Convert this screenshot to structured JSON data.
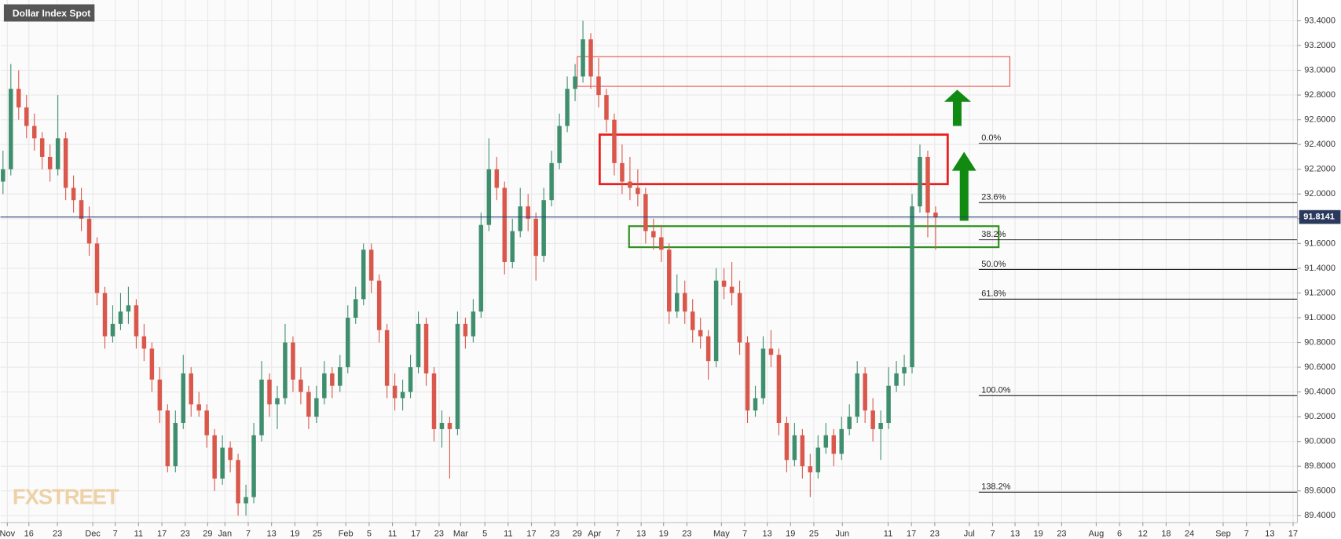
{
  "chart_data": {
    "type": "candlestick",
    "title": "Dollar Index Spot",
    "watermark": "FXSTREET",
    "up_color": "#3f8f6f",
    "down_color": "#d9584b",
    "grid": true,
    "ylim": [
      89.344,
      93.568
    ],
    "yticks": [
      {
        "value": 89.4,
        "label": "89.4000"
      },
      {
        "value": 89.6,
        "label": "89.6000"
      },
      {
        "value": 89.8,
        "label": "89.8000"
      },
      {
        "value": 90.0,
        "label": "90.0000"
      },
      {
        "value": 90.2,
        "label": "90.2000"
      },
      {
        "value": 90.4,
        "label": "90.4000"
      },
      {
        "value": 90.6,
        "label": "90.6000"
      },
      {
        "value": 90.8,
        "label": "90.8000"
      },
      {
        "value": 91.0,
        "label": "91.0000"
      },
      {
        "value": 91.2,
        "label": "91.2000"
      },
      {
        "value": 91.4,
        "label": "91.4000"
      },
      {
        "value": 91.6,
        "label": "91.6000"
      },
      {
        "value": 91.8,
        "label": "91.8000"
      },
      {
        "value": 92.0,
        "label": "92.0000"
      },
      {
        "value": 92.2,
        "label": "92.2000"
      },
      {
        "value": 92.4,
        "label": "92.4000"
      },
      {
        "value": 92.6,
        "label": "92.6000"
      },
      {
        "value": 92.8,
        "label": "92.8000"
      },
      {
        "value": 93.0,
        "label": "93.0000"
      },
      {
        "value": 93.2,
        "label": "93.2000"
      },
      {
        "value": 93.4,
        "label": "93.4000"
      }
    ],
    "xtick_labels": [
      "Nov",
      "16",
      "23",
      "Dec",
      "7",
      "11",
      "17",
      "23",
      "29",
      "Jan",
      "7",
      "13",
      "19",
      "25",
      "Feb",
      "5",
      "11",
      "17",
      "23",
      "Mar",
      "5",
      "11",
      "17",
      "23",
      "29",
      "Apr",
      "7",
      "13",
      "19",
      "23",
      "May",
      "7",
      "13",
      "19",
      "25",
      "Jun",
      "11",
      "17",
      "23",
      "Jul",
      "7",
      "13",
      "19",
      "23",
      "Aug",
      "6",
      "12",
      "18",
      "24",
      "Sep",
      "7",
      "13",
      "17"
    ],
    "last": 91.8141,
    "fib_levels": [
      {
        "label": "0.0%",
        "value": 92.41
      },
      {
        "label": "23.6%",
        "value": 91.93
      },
      {
        "label": "38.2%",
        "value": 91.63
      },
      {
        "label": "50.0%",
        "value": 91.39
      },
      {
        "label": "61.8%",
        "value": 91.15
      },
      {
        "label": "100.0%",
        "value": 90.37
      },
      {
        "label": "138.2%",
        "value": 89.59
      }
    ],
    "zones": [
      {
        "range": [
          92.87,
          93.11
        ],
        "color": "#e8504a"
      },
      {
        "range": [
          92.08,
          92.48
        ],
        "color": "#ee1c1c"
      },
      {
        "range": [
          91.57,
          91.74
        ],
        "color": "#2f8f1f"
      }
    ],
    "ohlc": [
      [
        92.1,
        92.35,
        92.0,
        92.2
      ],
      [
        92.2,
        93.05,
        92.15,
        92.85
      ],
      [
        92.85,
        93.0,
        92.6,
        92.7
      ],
      [
        92.7,
        92.8,
        92.45,
        92.55
      ],
      [
        92.55,
        92.65,
        92.35,
        92.45
      ],
      [
        92.45,
        92.5,
        92.2,
        92.3
      ],
      [
        92.3,
        92.4,
        92.1,
        92.2
      ],
      [
        92.2,
        92.8,
        92.15,
        92.45
      ],
      [
        92.45,
        92.5,
        91.95,
        92.05
      ],
      [
        92.05,
        92.15,
        91.85,
        91.95
      ],
      [
        91.95,
        92.05,
        91.7,
        91.8
      ],
      [
        91.8,
        91.9,
        91.5,
        91.6
      ],
      [
        91.6,
        91.65,
        91.1,
        91.2
      ],
      [
        91.2,
        91.25,
        90.75,
        90.85
      ],
      [
        90.85,
        91.1,
        90.8,
        90.95
      ],
      [
        90.95,
        91.2,
        90.9,
        91.05
      ],
      [
        91.05,
        91.25,
        90.95,
        91.1
      ],
      [
        91.1,
        91.15,
        90.75,
        90.85
      ],
      [
        90.85,
        90.95,
        90.65,
        90.75
      ],
      [
        90.75,
        90.8,
        90.4,
        90.5
      ],
      [
        90.5,
        90.6,
        90.15,
        90.25
      ],
      [
        90.25,
        90.3,
        89.75,
        89.8
      ],
      [
        89.8,
        90.25,
        89.75,
        90.15
      ],
      [
        90.15,
        90.7,
        90.1,
        90.55
      ],
      [
        90.55,
        90.6,
        90.2,
        90.3
      ],
      [
        90.3,
        90.4,
        90.2,
        90.25
      ],
      [
        90.25,
        90.3,
        89.95,
        90.05
      ],
      [
        90.05,
        90.1,
        89.6,
        89.7
      ],
      [
        89.7,
        90.05,
        89.65,
        89.95
      ],
      [
        89.95,
        90.0,
        89.75,
        89.85
      ],
      [
        89.85,
        89.9,
        89.4,
        89.5
      ],
      [
        89.5,
        89.65,
        89.4,
        89.55
      ],
      [
        89.55,
        90.15,
        89.5,
        90.05
      ],
      [
        90.05,
        90.65,
        90.0,
        90.5
      ],
      [
        90.5,
        90.55,
        90.2,
        90.3
      ],
      [
        90.3,
        90.45,
        90.1,
        90.35
      ],
      [
        90.35,
        90.95,
        90.3,
        90.8
      ],
      [
        90.8,
        90.85,
        90.4,
        90.5
      ],
      [
        90.5,
        90.6,
        90.3,
        90.4
      ],
      [
        90.4,
        90.45,
        90.1,
        90.2
      ],
      [
        90.2,
        90.45,
        90.15,
        90.35
      ],
      [
        90.35,
        90.65,
        90.3,
        90.55
      ],
      [
        90.55,
        90.6,
        90.35,
        90.45
      ],
      [
        90.45,
        90.7,
        90.4,
        90.6
      ],
      [
        90.6,
        91.1,
        90.55,
        91.0
      ],
      [
        91.0,
        91.25,
        90.95,
        91.15
      ],
      [
        91.15,
        91.6,
        91.1,
        91.55
      ],
      [
        91.55,
        91.6,
        91.2,
        91.3
      ],
      [
        91.3,
        91.35,
        90.8,
        90.9
      ],
      [
        90.9,
        90.95,
        90.35,
        90.45
      ],
      [
        90.45,
        90.55,
        90.25,
        90.35
      ],
      [
        90.35,
        90.5,
        90.25,
        90.4
      ],
      [
        90.4,
        90.7,
        90.35,
        90.6
      ],
      [
        90.6,
        91.05,
        90.55,
        90.95
      ],
      [
        90.95,
        91.0,
        90.45,
        90.55
      ],
      [
        90.55,
        90.6,
        90.0,
        90.1
      ],
      [
        90.1,
        90.25,
        89.95,
        90.15
      ],
      [
        90.15,
        90.2,
        89.7,
        90.1
      ],
      [
        90.1,
        91.05,
        90.05,
        90.95
      ],
      [
        90.95,
        91.0,
        90.75,
        90.85
      ],
      [
        90.85,
        91.15,
        90.8,
        91.05
      ],
      [
        91.05,
        91.85,
        91.0,
        91.75
      ],
      [
        91.75,
        92.45,
        91.7,
        92.2
      ],
      [
        92.2,
        92.3,
        91.95,
        92.05
      ],
      [
        92.05,
        92.1,
        91.35,
        91.45
      ],
      [
        91.45,
        91.8,
        91.4,
        91.7
      ],
      [
        91.7,
        92.05,
        91.65,
        91.9
      ],
      [
        91.9,
        92.0,
        91.7,
        91.8
      ],
      [
        91.8,
        91.85,
        91.3,
        91.5
      ],
      [
        91.5,
        92.05,
        91.45,
        91.95
      ],
      [
        91.95,
        92.35,
        91.9,
        92.25
      ],
      [
        92.25,
        92.65,
        92.2,
        92.55
      ],
      [
        92.55,
        92.95,
        92.5,
        92.85
      ],
      [
        92.85,
        93.05,
        92.75,
        92.95
      ],
      [
        92.95,
        93.4,
        92.9,
        93.25
      ],
      [
        93.25,
        93.3,
        92.85,
        92.95
      ],
      [
        92.95,
        93.1,
        92.7,
        92.8
      ],
      [
        92.8,
        92.85,
        92.5,
        92.6
      ],
      [
        92.6,
        92.65,
        92.15,
        92.25
      ],
      [
        92.25,
        92.4,
        92.0,
        92.1
      ],
      [
        92.1,
        92.3,
        91.95,
        92.05
      ],
      [
        92.05,
        92.2,
        91.9,
        92.0
      ],
      [
        92.0,
        92.05,
        91.6,
        91.7
      ],
      [
        91.7,
        91.8,
        91.55,
        91.65
      ],
      [
        91.65,
        91.75,
        91.45,
        91.55
      ],
      [
        91.55,
        91.6,
        90.95,
        91.05
      ],
      [
        91.05,
        91.35,
        91.0,
        91.2
      ],
      [
        91.2,
        91.3,
        90.95,
        91.05
      ],
      [
        91.05,
        91.15,
        90.8,
        90.9
      ],
      [
        90.9,
        91.0,
        90.75,
        90.85
      ],
      [
        90.85,
        90.9,
        90.5,
        90.65
      ],
      [
        90.65,
        91.4,
        90.6,
        91.3
      ],
      [
        91.3,
        91.4,
        91.15,
        91.25
      ],
      [
        91.25,
        91.45,
        91.1,
        91.2
      ],
      [
        91.2,
        91.3,
        90.7,
        90.8
      ],
      [
        90.8,
        90.85,
        90.15,
        90.25
      ],
      [
        90.25,
        90.45,
        90.2,
        90.35
      ],
      [
        90.35,
        90.85,
        90.3,
        90.75
      ],
      [
        90.75,
        90.9,
        90.6,
        90.7
      ],
      [
        90.7,
        90.75,
        90.05,
        90.15
      ],
      [
        90.15,
        90.2,
        89.75,
        89.85
      ],
      [
        89.85,
        90.15,
        89.8,
        90.05
      ],
      [
        90.05,
        90.1,
        89.7,
        89.8
      ],
      [
        89.8,
        89.9,
        89.55,
        89.75
      ],
      [
        89.75,
        90.05,
        89.7,
        89.95
      ],
      [
        89.95,
        90.15,
        89.9,
        90.05
      ],
      [
        90.05,
        90.1,
        89.8,
        89.9
      ],
      [
        89.9,
        90.2,
        89.85,
        90.1
      ],
      [
        90.1,
        90.3,
        90.05,
        90.2
      ],
      [
        90.2,
        90.65,
        90.15,
        90.55
      ],
      [
        90.55,
        90.6,
        90.15,
        90.25
      ],
      [
        90.25,
        90.35,
        90.0,
        90.1
      ],
      [
        90.1,
        90.25,
        89.85,
        90.15
      ],
      [
        90.15,
        90.6,
        90.1,
        90.45
      ],
      [
        90.45,
        90.65,
        90.4,
        90.55
      ],
      [
        90.55,
        90.7,
        90.45,
        90.6
      ],
      [
        90.6,
        92.0,
        90.55,
        91.9
      ],
      [
        91.9,
        92.4,
        91.85,
        92.3
      ],
      [
        92.3,
        92.35,
        91.65,
        91.85
      ],
      [
        91.85,
        91.9,
        91.55,
        91.81
      ]
    ]
  }
}
